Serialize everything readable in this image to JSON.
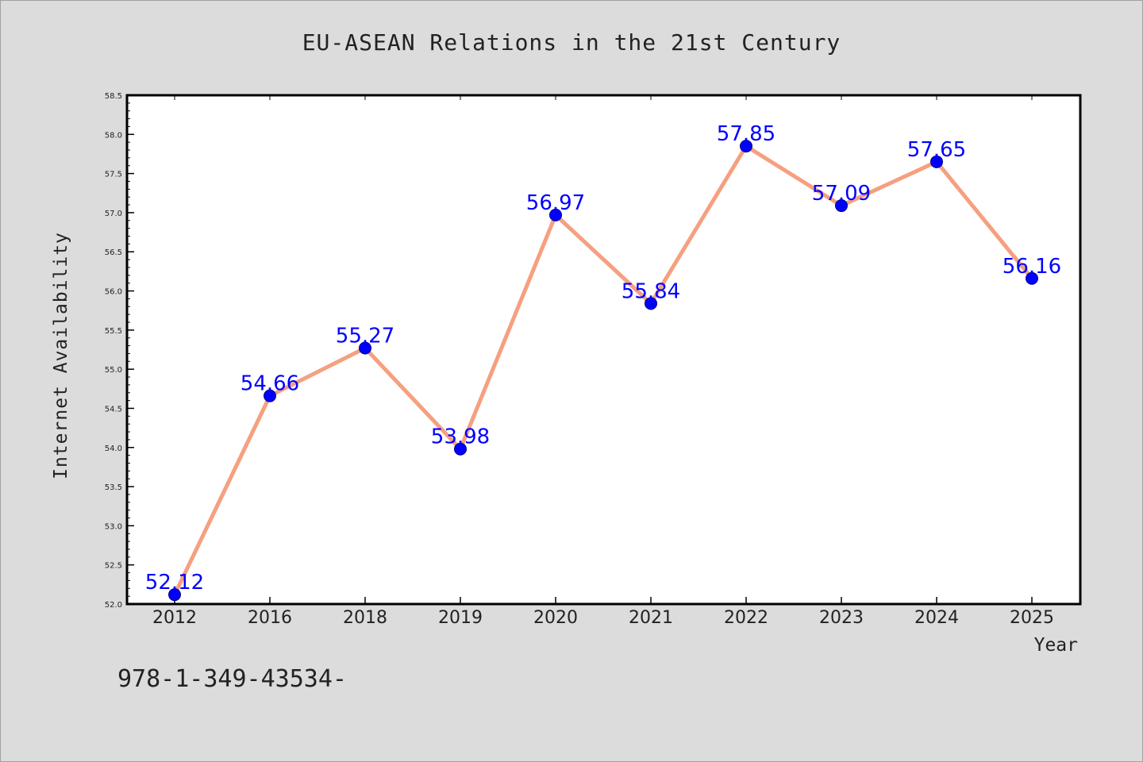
{
  "chart_data": {
    "type": "line",
    "title": "EU-ASEAN Relations in the 21st Century",
    "xlabel": "Year",
    "ylabel": "Internet Availability",
    "categories": [
      "2012",
      "2016",
      "2018",
      "2019",
      "2020",
      "2021",
      "2022",
      "2023",
      "2024",
      "2025"
    ],
    "series": [
      {
        "values": [
          52.12,
          54.66,
          55.27,
          53.98,
          56.97,
          55.84,
          57.85,
          57.09,
          57.65,
          56.16
        ],
        "labels": [
          "52.12",
          "54.66",
          "55.27",
          "53.98",
          "56.97",
          "55.84",
          "57.85",
          "57.09",
          "57.65",
          "56.16"
        ]
      }
    ],
    "ylim": [
      52.0,
      58.5
    ],
    "yticks": [
      "52.0",
      "52.5",
      "53.0",
      "53.5",
      "54.0",
      "54.5",
      "55.0",
      "55.5",
      "56.0",
      "56.5",
      "57.0",
      "57.5",
      "58.0",
      "58.5"
    ],
    "grid": false,
    "legend": "none",
    "colors": {
      "background": "#dcdcdc",
      "plot_background": "#ffffff",
      "line": "#f5a080",
      "marker": "#0000ff",
      "data_label": "#0000ff",
      "text": "#222222"
    }
  },
  "footer_text": "978-1-349-43534-"
}
